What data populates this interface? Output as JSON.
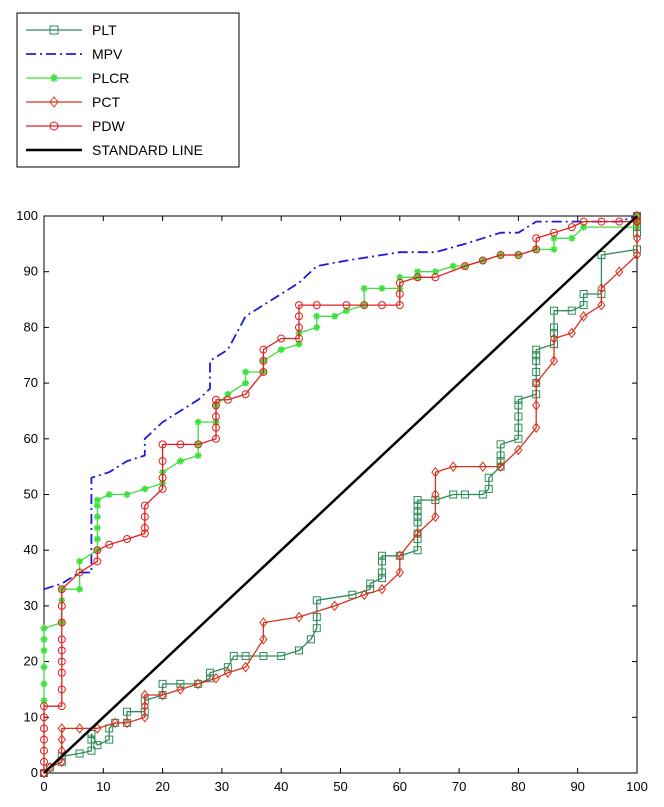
{
  "chart_data": {
    "type": "line",
    "title": "",
    "xlabel": "",
    "ylabel": "",
    "xlim": [
      0,
      100
    ],
    "ylim": [
      0,
      100
    ],
    "xticks": [
      0,
      10,
      20,
      30,
      40,
      50,
      60,
      70,
      80,
      90,
      100
    ],
    "yticks": [
      0,
      10,
      20,
      30,
      40,
      50,
      60,
      70,
      80,
      90,
      100
    ],
    "grid": false,
    "legend_position": "top-left-outside",
    "series": [
      {
        "name": "PLT",
        "color": "#2e8b57",
        "dash": "solid",
        "marker": "square",
        "points": [
          [
            0,
            0
          ],
          [
            1,
            1
          ],
          [
            3,
            2
          ],
          [
            3,
            3
          ],
          [
            6,
            3.5
          ],
          [
            8,
            4
          ],
          [
            8,
            6
          ],
          [
            8,
            7
          ],
          [
            9,
            5
          ],
          [
            11,
            6
          ],
          [
            11,
            8
          ],
          [
            12,
            9
          ],
          [
            14,
            9
          ],
          [
            14,
            11
          ],
          [
            17,
            11
          ],
          [
            17,
            13
          ],
          [
            20,
            14
          ],
          [
            20,
            16
          ],
          [
            23,
            16
          ],
          [
            26,
            16
          ],
          [
            28,
            17
          ],
          [
            28,
            18
          ],
          [
            31,
            19
          ],
          [
            32,
            21
          ],
          [
            34,
            21
          ],
          [
            37,
            21
          ],
          [
            40,
            21
          ],
          [
            43,
            22
          ],
          [
            45,
            24
          ],
          [
            46,
            26
          ],
          [
            46,
            28
          ],
          [
            46,
            31
          ],
          [
            52,
            32
          ],
          [
            55,
            33
          ],
          [
            55,
            34
          ],
          [
            57,
            35
          ],
          [
            57,
            36
          ],
          [
            57,
            38
          ],
          [
            57,
            39
          ],
          [
            60,
            39
          ],
          [
            63,
            40
          ],
          [
            63,
            42
          ],
          [
            63,
            43
          ],
          [
            63,
            45
          ],
          [
            63,
            46
          ],
          [
            63,
            47
          ],
          [
            63,
            48
          ],
          [
            63,
            49
          ],
          [
            66,
            49
          ],
          [
            69,
            50
          ],
          [
            71,
            50
          ],
          [
            74,
            50
          ],
          [
            75,
            51
          ],
          [
            75,
            53
          ],
          [
            77,
            55
          ],
          [
            77,
            56
          ],
          [
            77,
            57
          ],
          [
            77,
            59
          ],
          [
            80,
            60
          ],
          [
            80,
            62
          ],
          [
            80,
            64
          ],
          [
            80,
            66
          ],
          [
            80,
            67
          ],
          [
            83,
            68
          ],
          [
            83,
            70
          ],
          [
            83,
            72
          ],
          [
            83,
            74
          ],
          [
            83,
            75
          ],
          [
            83,
            76
          ],
          [
            86,
            77
          ],
          [
            86,
            79
          ],
          [
            86,
            80
          ],
          [
            86,
            83
          ],
          [
            89,
            83
          ],
          [
            91,
            84
          ],
          [
            91,
            86
          ],
          [
            94,
            86
          ],
          [
            94,
            93
          ],
          [
            100,
            94
          ],
          [
            100,
            97
          ],
          [
            100,
            98
          ],
          [
            100,
            100
          ]
        ]
      },
      {
        "name": "MPV",
        "color": "#1c1cd8",
        "dash": "dashdot",
        "marker": "none",
        "points": [
          [
            0,
            33
          ],
          [
            3,
            34
          ],
          [
            6,
            36
          ],
          [
            8,
            36
          ],
          [
            8,
            53
          ],
          [
            11,
            54
          ],
          [
            14,
            56
          ],
          [
            17,
            57
          ],
          [
            17,
            60
          ],
          [
            20,
            63
          ],
          [
            23,
            65
          ],
          [
            26,
            67
          ],
          [
            28,
            69
          ],
          [
            28,
            74
          ],
          [
            31,
            76
          ],
          [
            34,
            82
          ],
          [
            37,
            84
          ],
          [
            40,
            86
          ],
          [
            43,
            88
          ],
          [
            46,
            91
          ],
          [
            51,
            92
          ],
          [
            57,
            93
          ],
          [
            60,
            93.5
          ],
          [
            66,
            93.5
          ],
          [
            71,
            95
          ],
          [
            74,
            96
          ],
          [
            77,
            97
          ],
          [
            80,
            97
          ],
          [
            83,
            99
          ],
          [
            86,
            99
          ],
          [
            88,
            99
          ],
          [
            91,
            99
          ],
          [
            94,
            99
          ],
          [
            97,
            99
          ],
          [
            100,
            100
          ]
        ]
      },
      {
        "name": "PLCR",
        "color": "#3fe03f",
        "dash": "solid",
        "marker": "asterisk",
        "points": [
          [
            0,
            13
          ],
          [
            0,
            16
          ],
          [
            0,
            19
          ],
          [
            0,
            22
          ],
          [
            0,
            24
          ],
          [
            0,
            26
          ],
          [
            3,
            27
          ],
          [
            3,
            31
          ],
          [
            3,
            33
          ],
          [
            6,
            33
          ],
          [
            6,
            38
          ],
          [
            9,
            40
          ],
          [
            9,
            42
          ],
          [
            9,
            44
          ],
          [
            9,
            46
          ],
          [
            9,
            48
          ],
          [
            9,
            49
          ],
          [
            11,
            50
          ],
          [
            14,
            50
          ],
          [
            17,
            51
          ],
          [
            20,
            52
          ],
          [
            20,
            54
          ],
          [
            23,
            56
          ],
          [
            26,
            57
          ],
          [
            26,
            59
          ],
          [
            26,
            63
          ],
          [
            29,
            63
          ],
          [
            29,
            66
          ],
          [
            31,
            68
          ],
          [
            34,
            70
          ],
          [
            34,
            72
          ],
          [
            37,
            72
          ],
          [
            37,
            74
          ],
          [
            40,
            76
          ],
          [
            43,
            77
          ],
          [
            43,
            79
          ],
          [
            46,
            80
          ],
          [
            46,
            82
          ],
          [
            49,
            82
          ],
          [
            51,
            83
          ],
          [
            54,
            84
          ],
          [
            54,
            87
          ],
          [
            57,
            87
          ],
          [
            60,
            87
          ],
          [
            60,
            89
          ],
          [
            63,
            89
          ],
          [
            63,
            90
          ],
          [
            66,
            90
          ],
          [
            69,
            91
          ],
          [
            71,
            91
          ],
          [
            74,
            92
          ],
          [
            77,
            93
          ],
          [
            80,
            93
          ],
          [
            83,
            94
          ],
          [
            86,
            94
          ],
          [
            86,
            96
          ],
          [
            89,
            96
          ],
          [
            91,
            98
          ],
          [
            100,
            98
          ],
          [
            100,
            99
          ],
          [
            100,
            100
          ]
        ]
      },
      {
        "name": "PCT",
        "color": "#d9321c",
        "dash": "solid",
        "marker": "diamond",
        "points": [
          [
            0,
            0
          ],
          [
            1,
            1
          ],
          [
            3,
            2
          ],
          [
            3,
            4
          ],
          [
            3,
            6
          ],
          [
            3,
            8
          ],
          [
            6,
            8
          ],
          [
            9,
            8
          ],
          [
            12,
            9
          ],
          [
            14,
            9
          ],
          [
            17,
            10
          ],
          [
            17,
            12
          ],
          [
            17,
            14
          ],
          [
            20,
            14
          ],
          [
            23,
            15
          ],
          [
            26,
            16
          ],
          [
            29,
            17
          ],
          [
            31,
            18
          ],
          [
            34,
            19
          ],
          [
            37,
            24
          ],
          [
            37,
            27
          ],
          [
            43,
            28
          ],
          [
            49,
            30
          ],
          [
            54,
            32
          ],
          [
            57,
            33
          ],
          [
            60,
            36
          ],
          [
            60,
            39
          ],
          [
            63,
            43
          ],
          [
            66,
            46
          ],
          [
            66,
            50
          ],
          [
            66,
            54
          ],
          [
            69,
            55
          ],
          [
            74,
            55
          ],
          [
            77,
            55
          ],
          [
            80,
            58
          ],
          [
            83,
            62
          ],
          [
            83,
            66
          ],
          [
            83,
            70
          ],
          [
            86,
            74
          ],
          [
            86,
            78
          ],
          [
            89,
            79
          ],
          [
            91,
            82
          ],
          [
            94,
            84
          ],
          [
            94,
            87
          ],
          [
            97,
            90
          ],
          [
            100,
            93
          ],
          [
            100,
            96
          ],
          [
            100,
            99
          ],
          [
            100,
            100
          ]
        ]
      },
      {
        "name": "PDW",
        "color": "#e02020",
        "dash": "solid",
        "marker": "circle",
        "points": [
          [
            0,
            0
          ],
          [
            0,
            2
          ],
          [
            0,
            4
          ],
          [
            0,
            6
          ],
          [
            0,
            8
          ],
          [
            0,
            10
          ],
          [
            0,
            12
          ],
          [
            3,
            12
          ],
          [
            3,
            15
          ],
          [
            3,
            18
          ],
          [
            3,
            20
          ],
          [
            3,
            22
          ],
          [
            3,
            24
          ],
          [
            3,
            27
          ],
          [
            3,
            30
          ],
          [
            3,
            33
          ],
          [
            6,
            36
          ],
          [
            9,
            38
          ],
          [
            9,
            40
          ],
          [
            11,
            41
          ],
          [
            14,
            42
          ],
          [
            17,
            43
          ],
          [
            17,
            44
          ],
          [
            17,
            46
          ],
          [
            17,
            48
          ],
          [
            20,
            51
          ],
          [
            20,
            53
          ],
          [
            20,
            56
          ],
          [
            20,
            59
          ],
          [
            23,
            59
          ],
          [
            26,
            59
          ],
          [
            29,
            60
          ],
          [
            29,
            62
          ],
          [
            29,
            64
          ],
          [
            29,
            66
          ],
          [
            29,
            67
          ],
          [
            31,
            67
          ],
          [
            34,
            68
          ],
          [
            37,
            72
          ],
          [
            37,
            74
          ],
          [
            37,
            76
          ],
          [
            40,
            78
          ],
          [
            43,
            78
          ],
          [
            43,
            80
          ],
          [
            43,
            82
          ],
          [
            43,
            84
          ],
          [
            46,
            84
          ],
          [
            51,
            84
          ],
          [
            54,
            84
          ],
          [
            57,
            84
          ],
          [
            60,
            84
          ],
          [
            60,
            86
          ],
          [
            60,
            88
          ],
          [
            63,
            89
          ],
          [
            66,
            89
          ],
          [
            71,
            91
          ],
          [
            74,
            92
          ],
          [
            77,
            93
          ],
          [
            80,
            93
          ],
          [
            83,
            94
          ],
          [
            83,
            96
          ],
          [
            86,
            97
          ],
          [
            89,
            98
          ],
          [
            91,
            99
          ],
          [
            94,
            99
          ],
          [
            97,
            99
          ],
          [
            100,
            99
          ],
          [
            100,
            100
          ]
        ]
      },
      {
        "name": "STANDARD  LINE",
        "color": "#000000",
        "dash": "solid",
        "marker": "none",
        "points": [
          [
            0,
            0
          ],
          [
            100,
            100
          ]
        ]
      }
    ]
  }
}
